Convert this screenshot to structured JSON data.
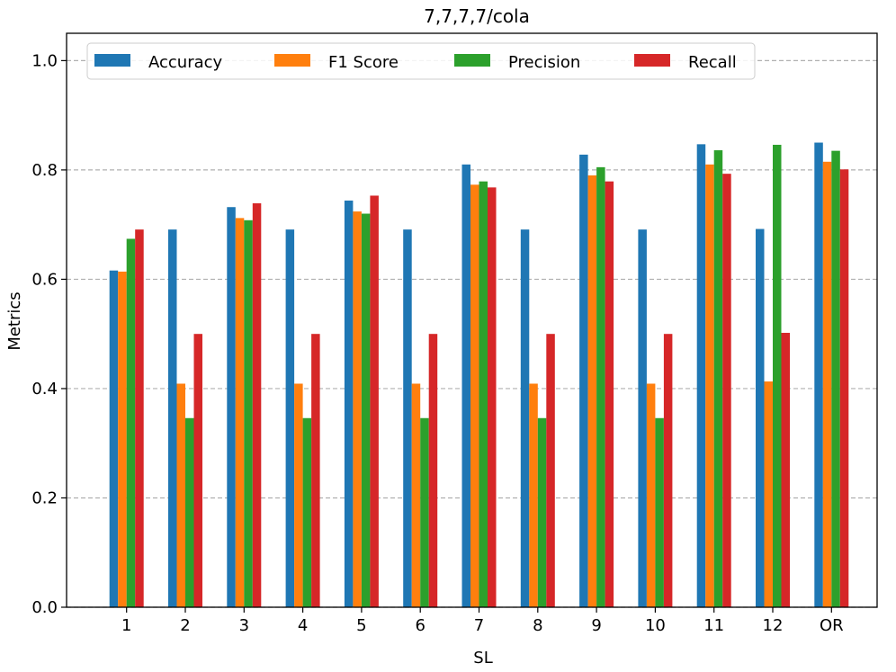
{
  "chart_data": {
    "type": "bar",
    "title": "7,7,7,7/cola",
    "xlabel": "SL",
    "ylabel": "Metrics",
    "ylim": [
      0,
      1.05
    ],
    "yticks": [
      "0.0",
      "0.2",
      "0.4",
      "0.6",
      "0.8",
      "1.0"
    ],
    "grid": "y-dashed",
    "legend_position": "top",
    "categories": [
      "1",
      "2",
      "3",
      "4",
      "5",
      "6",
      "7",
      "8",
      "9",
      "10",
      "11",
      "12",
      "OR"
    ],
    "series": [
      {
        "name": "Accuracy",
        "color": "#1f77b4",
        "values": [
          0.616,
          0.691,
          0.732,
          0.691,
          0.744,
          0.691,
          0.81,
          0.691,
          0.828,
          0.691,
          0.847,
          0.692,
          0.85
        ]
      },
      {
        "name": "F1 Score",
        "color": "#ff7f0e",
        "values": [
          0.614,
          0.409,
          0.712,
          0.409,
          0.724,
          0.409,
          0.773,
          0.409,
          0.79,
          0.409,
          0.81,
          0.413,
          0.815
        ]
      },
      {
        "name": "Precision",
        "color": "#2ca02c",
        "values": [
          0.674,
          0.346,
          0.708,
          0.346,
          0.72,
          0.346,
          0.779,
          0.346,
          0.805,
          0.346,
          0.836,
          0.846,
          0.835
        ]
      },
      {
        "name": "Recall",
        "color": "#d62728",
        "values": [
          0.691,
          0.5,
          0.739,
          0.5,
          0.753,
          0.5,
          0.768,
          0.5,
          0.779,
          0.5,
          0.793,
          0.502,
          0.801
        ]
      }
    ]
  }
}
